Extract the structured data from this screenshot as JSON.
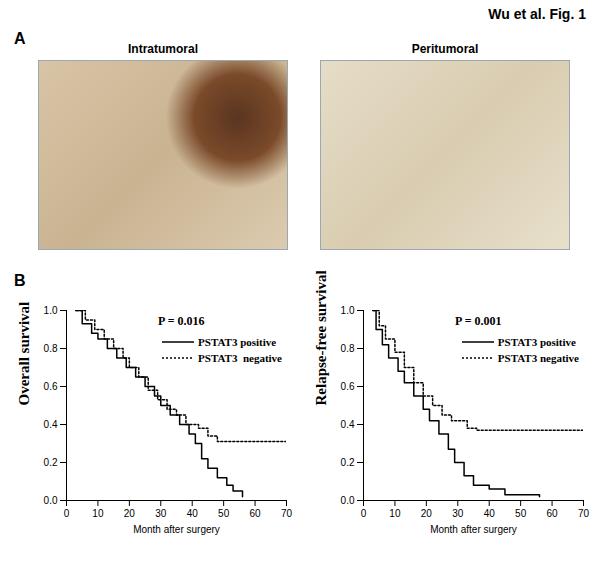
{
  "figure_label": "Wu et al. Fig. 1",
  "panel_a": {
    "letter": "A",
    "images": [
      "Intratumoral",
      "Peritumoral"
    ]
  },
  "panel_b": {
    "letter": "B"
  },
  "chart_data": [
    {
      "type": "line",
      "annotation": "P = 0.016",
      "y_label": "Overall survival",
      "x_label": "Month after surgery",
      "xlim": [
        0,
        70
      ],
      "xticks": [
        0,
        10,
        20,
        30,
        40,
        50,
        60,
        70
      ],
      "ylim": [
        0,
        1
      ],
      "yticks": [
        {
          "value": 0,
          "label": "0.0"
        },
        {
          "value": 0.2,
          "label": "0.2"
        },
        {
          "value": 0.4,
          "label": "0.4"
        },
        {
          "value": 0.6,
          "label": "0.6"
        },
        {
          "value": 0.8,
          "label": "0.8"
        },
        {
          "value": 1,
          "label": "1.0"
        }
      ],
      "legend": "upper right",
      "series": [
        {
          "name": "PSTAT3 positive",
          "color": "#000000",
          "line_style": "solid",
          "x": [
            3,
            5,
            8,
            10,
            13,
            16,
            19,
            22,
            25,
            28,
            30,
            33,
            36,
            39,
            41,
            43,
            45,
            48,
            51,
            53,
            56
          ],
          "values": [
            1.0,
            0.93,
            0.88,
            0.85,
            0.8,
            0.75,
            0.7,
            0.65,
            0.6,
            0.55,
            0.5,
            0.45,
            0.4,
            0.35,
            0.3,
            0.22,
            0.17,
            0.12,
            0.08,
            0.05,
            0.02
          ]
        },
        {
          "name": "PSTAT3  negative",
          "color": "#000000",
          "line_style": "dotted",
          "x": [
            3,
            6,
            9,
            12,
            15,
            18,
            20,
            23,
            26,
            29,
            32,
            35,
            38,
            42,
            45,
            48,
            70
          ],
          "values": [
            1.0,
            0.95,
            0.9,
            0.85,
            0.8,
            0.75,
            0.7,
            0.65,
            0.58,
            0.53,
            0.48,
            0.45,
            0.4,
            0.38,
            0.34,
            0.31,
            0.31
          ]
        }
      ]
    },
    {
      "type": "line",
      "annotation": "P = 0.001",
      "y_label": "Relapse-free survival",
      "x_label": "Month after surgery",
      "xlim": [
        0,
        70
      ],
      "xticks": [
        0,
        10,
        20,
        30,
        40,
        50,
        60,
        70
      ],
      "ylim": [
        0,
        1
      ],
      "yticks": [
        {
          "value": 0,
          "label": "0.0"
        },
        {
          "value": 0.2,
          "label": "0.2"
        },
        {
          "value": 0.4,
          "label": "0.4"
        },
        {
          "value": 0.6,
          "label": "0.6"
        },
        {
          "value": 0.8,
          "label": "0.8"
        },
        {
          "value": 1,
          "label": "1.0"
        }
      ],
      "legend": "upper right",
      "series": [
        {
          "name": "PSTAT3 positive",
          "color": "#000000",
          "line_style": "solid",
          "x": [
            3,
            4,
            6,
            8,
            11,
            13,
            16,
            19,
            21,
            24,
            27,
            29,
            32,
            35,
            40,
            45,
            56
          ],
          "values": [
            1.0,
            0.9,
            0.82,
            0.75,
            0.68,
            0.62,
            0.55,
            0.48,
            0.42,
            0.35,
            0.27,
            0.2,
            0.13,
            0.08,
            0.06,
            0.03,
            0.02
          ]
        },
        {
          "name": "PSTAT3 negative",
          "color": "#000000",
          "line_style": "dotted",
          "x": [
            3,
            5,
            7,
            10,
            13,
            16,
            19,
            22,
            25,
            28,
            33,
            36,
            70
          ],
          "values": [
            1.0,
            0.92,
            0.85,
            0.78,
            0.7,
            0.62,
            0.55,
            0.5,
            0.45,
            0.42,
            0.38,
            0.37,
            0.37
          ]
        }
      ]
    }
  ]
}
